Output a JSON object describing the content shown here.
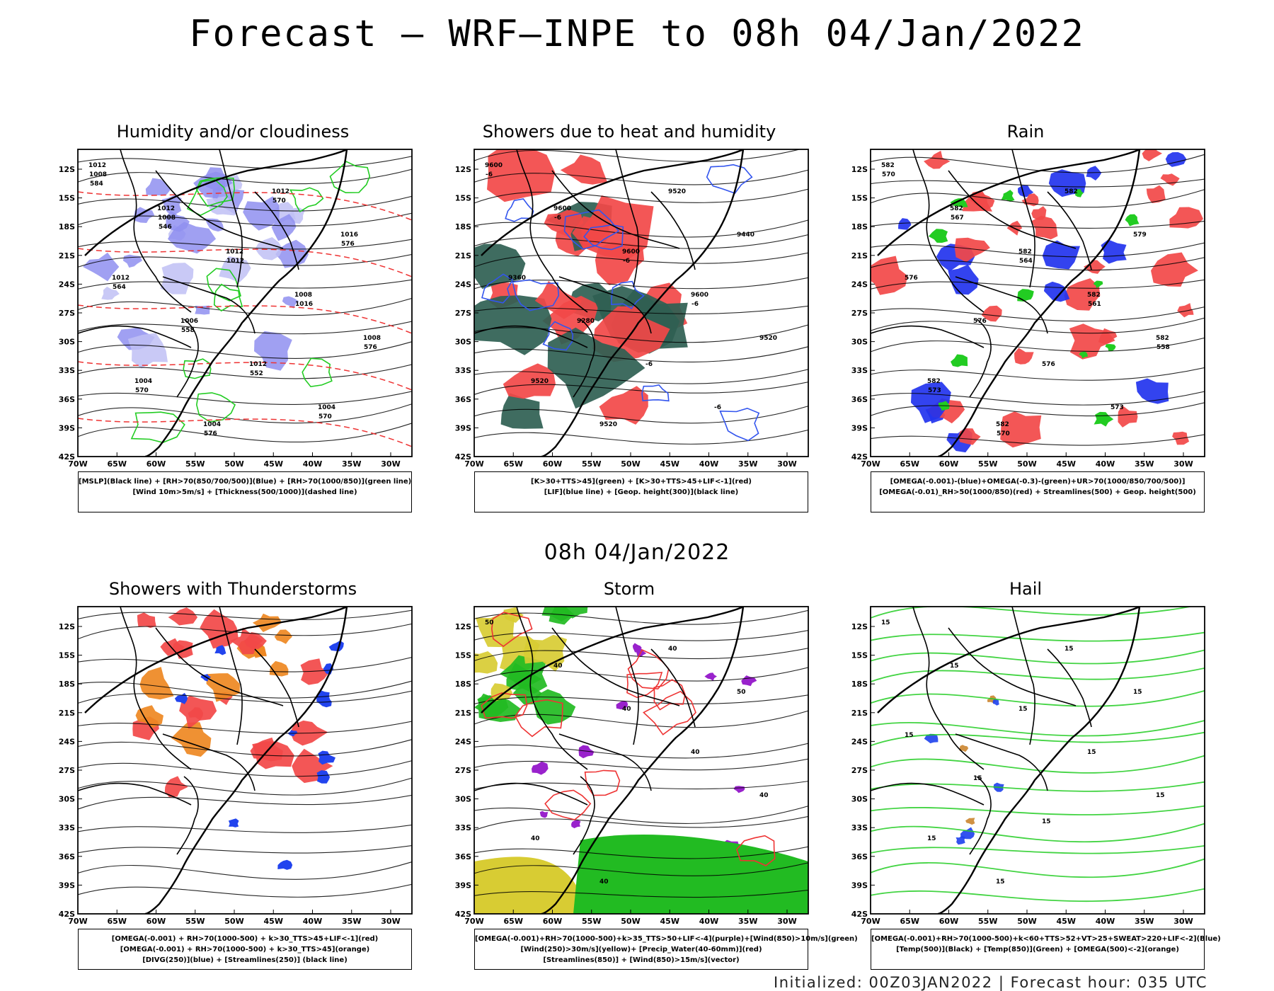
{
  "chart_data": [
    {
      "type": "heatmap",
      "title": "Humidity and/or cloudiness",
      "lat_labels": [
        "12S",
        "15S",
        "18S",
        "21S",
        "24S",
        "27S",
        "30S",
        "33S",
        "36S",
        "39S",
        "42S"
      ],
      "lon_labels": [
        "70W",
        "65W",
        "60W",
        "55W",
        "50W",
        "45W",
        "40W",
        "35W",
        "30W"
      ],
      "contour_labels": [
        "1012",
        "1012",
        "1012",
        "1008",
        "1008",
        "1004",
        "1004",
        "1012",
        "1016",
        "1012",
        "1006",
        "1012",
        "1004",
        "1008",
        "1008",
        "1012",
        "1016",
        "576",
        "570",
        "576",
        "570",
        "576",
        "564",
        "558",
        "552",
        "570",
        "584",
        "546"
      ],
      "legend": [
        "[MSLP](Black line) + [RH>70(850/700/500)](Blue) + [RH>70(1000/850)](green line)",
        "[Wind 10m>5m/s] + [Thickness(500/1000)](dashed line)"
      ],
      "colors": {
        "field": "#8f8ff0",
        "field2": "#c0c0f4",
        "line": "#22cc22",
        "dash": "#ee3333"
      }
    },
    {
      "type": "heatmap",
      "title": "Showers due to heat and humidity",
      "lat_labels": [
        "12S",
        "15S",
        "18S",
        "21S",
        "24S",
        "27S",
        "30S",
        "33S",
        "36S",
        "39S",
        "42S"
      ],
      "lon_labels": [
        "70W",
        "65W",
        "60W",
        "55W",
        "50W",
        "45W",
        "40W",
        "35W",
        "30W"
      ],
      "contour_labels": [
        "9600",
        "9600",
        "9600",
        "9600",
        "9520",
        "9520",
        "9520",
        "9520",
        "9440",
        "9360",
        "9280",
        "-6",
        "-6",
        "-6",
        "-6",
        "-6",
        "-6"
      ],
      "legend": [
        "[K>30+TTS>45](green) + [K>30+TTS>45+LIF<-1](red)",
        "[LIF](blue line) + [Geop. height(300)](black line)"
      ],
      "colors": {
        "field": "#f24848",
        "field2": "#2f5f52",
        "line": "#3355ee"
      }
    },
    {
      "type": "heatmap",
      "title": "Rain",
      "lat_labels": [
        "12S",
        "15S",
        "18S",
        "21S",
        "24S",
        "27S",
        "30S",
        "33S",
        "36S",
        "39S",
        "42S"
      ],
      "lon_labels": [
        "70W",
        "65W",
        "60W",
        "55W",
        "50W",
        "45W",
        "40W",
        "35W",
        "30W"
      ],
      "contour_labels": [
        "582",
        "582",
        "582",
        "582",
        "582",
        "582",
        "582",
        "582",
        "579",
        "576",
        "576",
        "576",
        "573",
        "570",
        "567",
        "564",
        "561",
        "558",
        "573",
        "570"
      ],
      "legend": [
        "[OMEGA(-0.001)-(blue)+OMEGA(-0.3)-(green)+UR>70(1000/850/700/500)]",
        "[OMEGA(-0.01)_RH>50(1000/850)(red) + Streamlines(500) + Geop. height(500)"
      ],
      "colors": {
        "field": "#f24848",
        "field2": "#2233ee",
        "field3": "#22cc22"
      }
    },
    {
      "type": "heatmap",
      "title": "Showers with Thunderstorms",
      "lat_labels": [
        "12S",
        "15S",
        "18S",
        "21S",
        "24S",
        "27S",
        "30S",
        "33S",
        "36S",
        "39S",
        "42S"
      ],
      "lon_labels": [
        "70W",
        "65W",
        "60W",
        "55W",
        "50W",
        "45W",
        "40W",
        "35W",
        "30W"
      ],
      "legend": [
        "[OMEGA(-0.001) + RH>70(1000-500) + k>30_TTS>45+LIF<-1](red)",
        "[OMEGA(-0.001) + RH>70(1000-500) + k>30_TTS>45](orange)",
        "[DIVG(250)](blue) + [Streamlines(250)] (black line)"
      ],
      "colors": {
        "field": "#f24848",
        "field2": "#ee8822",
        "field3": "#2244ee"
      }
    },
    {
      "type": "heatmap",
      "title": "Storm",
      "lat_labels": [
        "12S",
        "15S",
        "18S",
        "21S",
        "24S",
        "27S",
        "30S",
        "33S",
        "36S",
        "39S",
        "42S"
      ],
      "lon_labels": [
        "70W",
        "65W",
        "60W",
        "55W",
        "50W",
        "45W",
        "40W",
        "35W",
        "30W"
      ],
      "contour_labels": [
        "50",
        "40",
        "40",
        "40",
        "40",
        "40",
        "40",
        "40",
        "50"
      ],
      "legend": [
        "[OMEGA(-0.001)+RH>70(1000-500)+k>35_TTS>50+LIF<-4](purple)+[Wind(850)>10m/s](green)",
        "[Wind(250)>30m/s](yellow)+ [Precip_Water(40-60mm)](red)",
        "[Streamlines(850)] + [Wind(850)>15m/s](vector)"
      ],
      "colors": {
        "field": "#22bb22",
        "field2": "#d8cc33",
        "line": "#ee3333",
        "field3": "#9922cc"
      }
    },
    {
      "type": "heatmap",
      "title": "Hail",
      "lat_labels": [
        "12S",
        "15S",
        "18S",
        "21S",
        "24S",
        "27S",
        "30S",
        "33S",
        "36S",
        "39S",
        "42S"
      ],
      "lon_labels": [
        "70W",
        "65W",
        "60W",
        "55W",
        "50W",
        "45W",
        "40W",
        "35W",
        "30W"
      ],
      "contour_labels": [
        "15",
        "15",
        "15",
        "15",
        "15",
        "15",
        "15",
        "15",
        "15",
        "15",
        "15",
        "15"
      ],
      "legend": [
        "[OMEGA(-0.001)+RH>70(1000-500)+k<60+TTS>52+VT>25+SWEAT>220+LIF<-2](Blue)",
        "[Temp(500)](Black) + [Temp(850)](Green) + [OMEGA(500)<-2](orange)"
      ],
      "colors": {
        "line": "#22cc22",
        "field": "#2244ee",
        "field2": "#cc8833"
      }
    }
  ],
  "header": {
    "main_title": "Forecast — WRF—INPE to 08h 04/Jan/2022",
    "mid_title": "08h 04/Jan/2022"
  },
  "footer": {
    "text": "Initialized: 00Z03JAN2022 | Forecast hour: 035 UTC"
  }
}
